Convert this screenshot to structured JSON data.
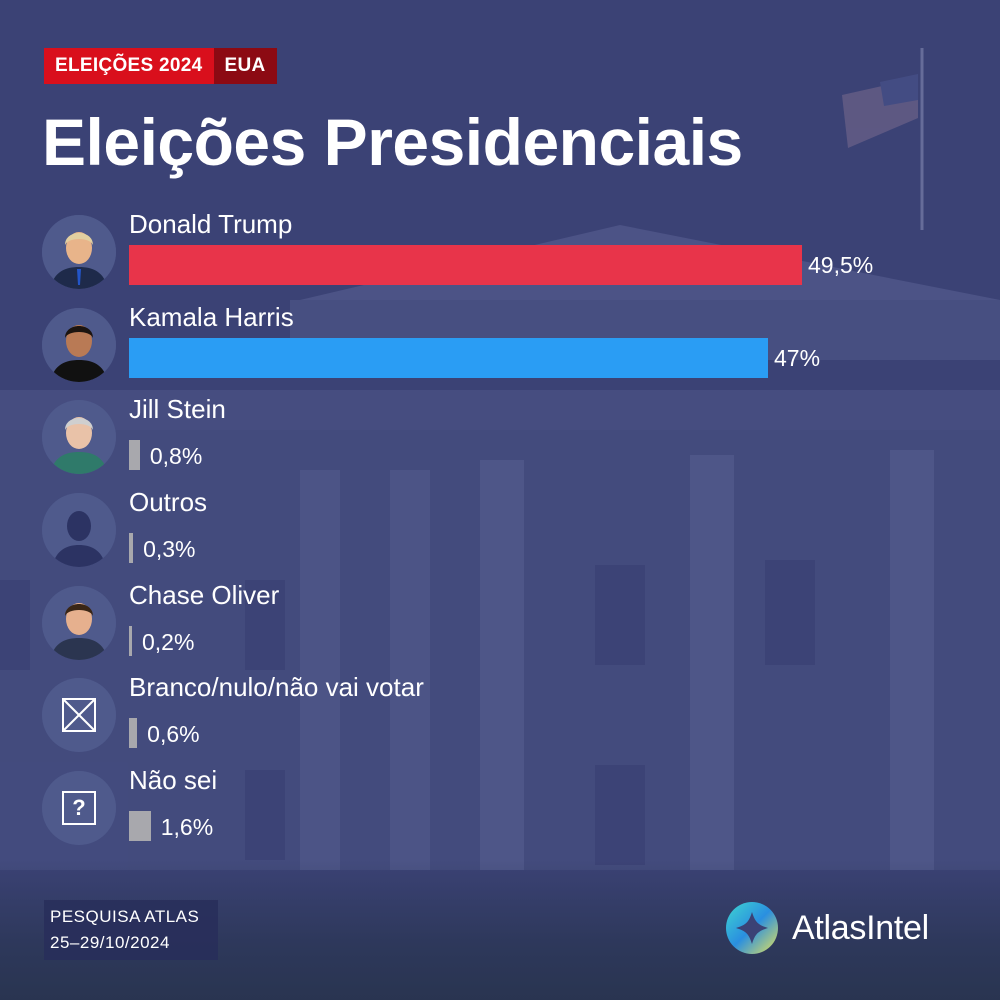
{
  "tags": {
    "primary": "ELEIÇÕES 2024",
    "secondary": "EUA"
  },
  "title": "Eleições Presidenciais",
  "colors": {
    "trump": "#e8344a",
    "harris": "#2a9df4",
    "other": "#a8a8ad",
    "background": "#3b4275",
    "tag_red": "#d90f1c",
    "tag_dark_red": "#8c0a13"
  },
  "chart_data": {
    "type": "bar",
    "orientation": "horizontal",
    "categories": [
      "Donald Trump",
      "Kamala Harris",
      "Jill Stein",
      "Outros",
      "Chase Oliver",
      "Branco/nulo/não vai votar",
      "Não sei"
    ],
    "values": [
      49.5,
      47,
      0.8,
      0.3,
      0.2,
      0.6,
      1.6
    ],
    "value_labels": [
      "49,5%",
      "47%",
      "0,8%",
      "0,3%",
      "0,2%",
      "0,6%",
      "1,6%"
    ],
    "bar_colors": [
      "#e8344a",
      "#2a9df4",
      "#a8a8ad",
      "#a8a8ad",
      "#a8a8ad",
      "#a8a8ad",
      "#a8a8ad"
    ],
    "icons": [
      "trump-portrait-icon",
      "harris-portrait-icon",
      "stein-portrait-icon",
      "person-silhouette-icon",
      "oliver-portrait-icon",
      "x-box-icon",
      "question-box-icon"
    ],
    "xlim": [
      0,
      50
    ],
    "title": "Eleições Presidenciais",
    "grid": false,
    "legend": "none"
  },
  "source": {
    "line1": "PESQUISA ATLAS",
    "line2": "25–29/10/2024"
  },
  "brand": {
    "name": "AtlasIntel"
  }
}
